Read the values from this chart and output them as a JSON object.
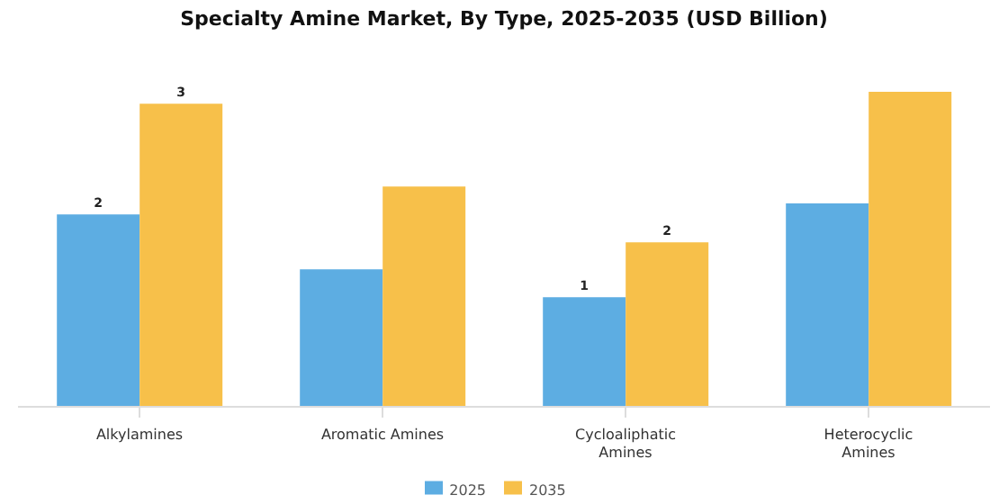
{
  "chart_data": {
    "type": "bar",
    "title": "Specialty Amine Market, By Type, 2025-2035 (USD Billion)",
    "categories": [
      "Alkylamines",
      "Aromatic Amines",
      "Cycloaliphatic Amines",
      "Heterocyclic Amines"
    ],
    "series": [
      {
        "name": "2025",
        "color": "#5dade2",
        "values": [
          1.93,
          1.38,
          1.1,
          2.04
        ],
        "value_labels": [
          "2",
          null,
          "1",
          null
        ]
      },
      {
        "name": "2035",
        "color": "#f7c04a",
        "values": [
          3.04,
          2.21,
          1.65,
          3.16
        ],
        "value_labels": [
          "3",
          null,
          "2",
          null
        ]
      }
    ],
    "legend": "bottom",
    "grid": false
  }
}
